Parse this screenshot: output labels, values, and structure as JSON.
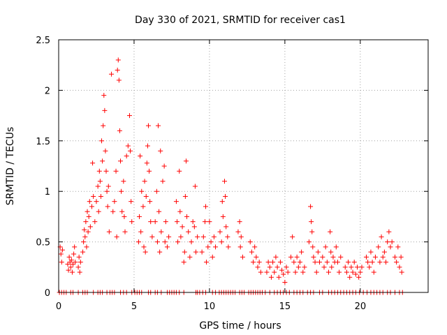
{
  "chart_data": {
    "type": "scatter",
    "title": "Day 330 of 2021, SRMTID for receiver cas1",
    "xlabel": "GPS time / hours",
    "ylabel": "SRMTID / TECUs",
    "xlim": [
      0,
      24.5
    ],
    "ylim": [
      0,
      2.5
    ],
    "xticks": [
      0,
      5,
      10,
      15,
      20
    ],
    "yticks": [
      0,
      0.5,
      1,
      1.5,
      2,
      2.5
    ],
    "xtick_labels": [
      "0",
      "5",
      "10",
      "15",
      "20"
    ],
    "ytick_labels": [
      "0",
      "0.5",
      "1",
      "1.5",
      "2",
      "2.5"
    ],
    "grid": true,
    "marker": "+",
    "color": "#ff0000",
    "series": [
      {
        "name": "SRMTID",
        "points": [
          [
            0.1,
            0.45
          ],
          [
            0.15,
            0.38
          ],
          [
            0.2,
            0.3
          ],
          [
            0.25,
            0.42
          ],
          [
            0.6,
            0.28
          ],
          [
            0.65,
            0.22
          ],
          [
            0.7,
            0.35
          ],
          [
            0.75,
            0.3
          ],
          [
            0.8,
            0.25
          ],
          [
            0.85,
            0.32
          ],
          [
            0.9,
            0.2
          ],
          [
            0.95,
            0.28
          ],
          [
            1.0,
            0.38
          ],
          [
            1.05,
            0.45
          ],
          [
            1.1,
            0.3
          ],
          [
            1.3,
            0.25
          ],
          [
            1.35,
            0.35
          ],
          [
            1.4,
            0.2
          ],
          [
            1.45,
            0.3
          ],
          [
            1.6,
            0.4
          ],
          [
            1.65,
            0.5
          ],
          [
            1.7,
            0.62
          ],
          [
            1.75,
            0.55
          ],
          [
            1.8,
            0.7
          ],
          [
            1.85,
            0.45
          ],
          [
            1.9,
            0.8
          ],
          [
            1.95,
            0.6
          ],
          [
            2.0,
            0.75
          ],
          [
            2.05,
            0.9
          ],
          [
            2.1,
            0.65
          ],
          [
            2.2,
            0.85
          ],
          [
            2.25,
            1.28
          ],
          [
            2.3,
            0.95
          ],
          [
            2.4,
            0.7
          ],
          [
            2.5,
            0.9
          ],
          [
            2.6,
            1.05
          ],
          [
            2.65,
            0.8
          ],
          [
            2.7,
            1.2
          ],
          [
            2.75,
            1.1
          ],
          [
            2.8,
            0.95
          ],
          [
            2.85,
            1.5
          ],
          [
            2.9,
            1.3
          ],
          [
            2.95,
            1.65
          ],
          [
            3.0,
            1.95
          ],
          [
            3.05,
            1.8
          ],
          [
            3.1,
            1.4
          ],
          [
            3.15,
            1.2
          ],
          [
            3.2,
            1.0
          ],
          [
            3.25,
            0.85
          ],
          [
            3.3,
            1.05
          ],
          [
            3.35,
            0.6
          ],
          [
            3.5,
            2.16
          ],
          [
            3.6,
            0.8
          ],
          [
            3.7,
            0.9
          ],
          [
            3.8,
            1.2
          ],
          [
            3.85,
            0.55
          ],
          [
            3.9,
            2.2
          ],
          [
            3.95,
            2.3
          ],
          [
            4.0,
            2.1
          ],
          [
            4.05,
            1.6
          ],
          [
            4.1,
            1.3
          ],
          [
            4.15,
            1.0
          ],
          [
            4.2,
            0.8
          ],
          [
            4.3,
            1.1
          ],
          [
            4.35,
            0.75
          ],
          [
            4.4,
            0.6
          ],
          [
            4.5,
            1.35
          ],
          [
            4.6,
            1.45
          ],
          [
            4.7,
            1.75
          ],
          [
            4.75,
            1.4
          ],
          [
            4.8,
            0.9
          ],
          [
            4.85,
            0.7
          ],
          [
            5.3,
            0.5
          ],
          [
            5.35,
            0.75
          ],
          [
            5.4,
            1.35
          ],
          [
            5.45,
            0.6
          ],
          [
            5.5,
            1.0
          ],
          [
            5.6,
            0.85
          ],
          [
            5.65,
            0.45
          ],
          [
            5.7,
            1.1
          ],
          [
            5.75,
            0.4
          ],
          [
            5.8,
            0.95
          ],
          [
            5.85,
            1.28
          ],
          [
            5.9,
            1.45
          ],
          [
            5.95,
            1.65
          ],
          [
            6.0,
            1.2
          ],
          [
            6.05,
            0.9
          ],
          [
            6.1,
            0.7
          ],
          [
            6.2,
            0.55
          ],
          [
            6.4,
            0.7
          ],
          [
            6.5,
            1.0
          ],
          [
            6.55,
            0.5
          ],
          [
            6.6,
            1.65
          ],
          [
            6.65,
            0.8
          ],
          [
            6.7,
            0.4
          ],
          [
            6.75,
            1.4
          ],
          [
            6.8,
            0.6
          ],
          [
            6.9,
            1.1
          ],
          [
            7.0,
            1.25
          ],
          [
            7.05,
            0.5
          ],
          [
            7.1,
            0.7
          ],
          [
            7.2,
            0.45
          ],
          [
            7.3,
            0.55
          ],
          [
            7.8,
            0.9
          ],
          [
            7.85,
            0.7
          ],
          [
            7.9,
            0.5
          ],
          [
            8.0,
            1.2
          ],
          [
            8.05,
            0.8
          ],
          [
            8.1,
            0.55
          ],
          [
            8.2,
            0.65
          ],
          [
            8.3,
            0.3
          ],
          [
            8.35,
            0.4
          ],
          [
            8.4,
            0.95
          ],
          [
            8.45,
            1.3
          ],
          [
            8.5,
            0.75
          ],
          [
            8.6,
            0.6
          ],
          [
            8.7,
            0.35
          ],
          [
            8.8,
            0.5
          ],
          [
            8.9,
            0.7
          ],
          [
            9.0,
            0.65
          ],
          [
            9.05,
            1.05
          ],
          [
            9.1,
            0.4
          ],
          [
            9.2,
            0.55
          ],
          [
            9.5,
            0.4
          ],
          [
            9.6,
            0.55
          ],
          [
            9.7,
            0.7
          ],
          [
            9.75,
            0.85
          ],
          [
            9.8,
            0.3
          ],
          [
            9.9,
            0.45
          ],
          [
            10.0,
            0.7
          ],
          [
            10.1,
            0.5
          ],
          [
            10.2,
            0.35
          ],
          [
            10.3,
            0.55
          ],
          [
            10.4,
            0.45
          ],
          [
            10.7,
            0.6
          ],
          [
            10.8,
            0.5
          ],
          [
            10.85,
            0.9
          ],
          [
            10.9,
            0.75
          ],
          [
            11.0,
            1.1
          ],
          [
            11.05,
            0.95
          ],
          [
            11.1,
            0.65
          ],
          [
            11.2,
            0.55
          ],
          [
            11.25,
            0.45
          ],
          [
            11.9,
            0.6
          ],
          [
            12.0,
            0.7
          ],
          [
            12.05,
            0.45
          ],
          [
            12.1,
            0.55
          ],
          [
            12.2,
            0.35
          ],
          [
            12.7,
            0.5
          ],
          [
            12.8,
            0.4
          ],
          [
            12.9,
            0.3
          ],
          [
            13.0,
            0.45
          ],
          [
            13.1,
            0.35
          ],
          [
            13.2,
            0.25
          ],
          [
            13.3,
            0.3
          ],
          [
            13.4,
            0.2
          ],
          [
            13.8,
            0.2
          ],
          [
            13.9,
            0.3
          ],
          [
            14.0,
            0.25
          ],
          [
            14.1,
            0.15
          ],
          [
            14.2,
            0.3
          ],
          [
            14.3,
            0.2
          ],
          [
            14.4,
            0.35
          ],
          [
            14.5,
            0.25
          ],
          [
            14.6,
            0.15
          ],
          [
            14.7,
            0.3
          ],
          [
            14.8,
            0.22
          ],
          [
            14.9,
            0.18
          ],
          [
            15.0,
            0.1
          ],
          [
            15.1,
            0.25
          ],
          [
            15.2,
            0.2
          ],
          [
            15.4,
            0.35
          ],
          [
            15.5,
            0.55
          ],
          [
            15.6,
            0.3
          ],
          [
            15.7,
            0.2
          ],
          [
            15.8,
            0.35
          ],
          [
            15.9,
            0.25
          ],
          [
            16.0,
            0.3
          ],
          [
            16.1,
            0.4
          ],
          [
            16.2,
            0.2
          ],
          [
            16.3,
            0.25
          ],
          [
            16.6,
            0.5
          ],
          [
            16.7,
            0.85
          ],
          [
            16.75,
            0.7
          ],
          [
            16.8,
            0.6
          ],
          [
            16.85,
            0.45
          ],
          [
            16.9,
            0.35
          ],
          [
            17.0,
            0.3
          ],
          [
            17.1,
            0.2
          ],
          [
            17.2,
            0.4
          ],
          [
            17.3,
            0.3
          ],
          [
            17.5,
            0.35
          ],
          [
            17.6,
            0.25
          ],
          [
            17.7,
            0.45
          ],
          [
            17.8,
            0.3
          ],
          [
            17.9,
            0.2
          ],
          [
            18.0,
            0.6
          ],
          [
            18.05,
            0.4
          ],
          [
            18.1,
            0.25
          ],
          [
            18.2,
            0.35
          ],
          [
            18.3,
            0.3
          ],
          [
            18.4,
            0.45
          ],
          [
            18.5,
            0.3
          ],
          [
            18.6,
            0.2
          ],
          [
            18.7,
            0.35
          ],
          [
            19.0,
            0.25
          ],
          [
            19.1,
            0.2
          ],
          [
            19.2,
            0.3
          ],
          [
            19.3,
            0.15
          ],
          [
            19.4,
            0.25
          ],
          [
            19.5,
            0.2
          ],
          [
            19.6,
            0.3
          ],
          [
            19.7,
            0.18
          ],
          [
            19.8,
            0.25
          ],
          [
            19.9,
            0.15
          ],
          [
            20.0,
            0.2
          ],
          [
            20.1,
            0.25
          ],
          [
            20.4,
            0.35
          ],
          [
            20.5,
            0.3
          ],
          [
            20.6,
            0.25
          ],
          [
            20.7,
            0.4
          ],
          [
            20.8,
            0.3
          ],
          [
            20.9,
            0.2
          ],
          [
            21.0,
            0.35
          ],
          [
            21.2,
            0.45
          ],
          [
            21.3,
            0.3
          ],
          [
            21.4,
            0.55
          ],
          [
            21.5,
            0.35
          ],
          [
            21.6,
            0.4
          ],
          [
            21.7,
            0.3
          ],
          [
            21.8,
            0.5
          ],
          [
            21.9,
            0.6
          ],
          [
            22.0,
            0.45
          ],
          [
            22.1,
            0.5
          ],
          [
            22.3,
            0.35
          ],
          [
            22.4,
            0.3
          ],
          [
            22.5,
            0.45
          ],
          [
            22.6,
            0.25
          ],
          [
            22.7,
            0.35
          ],
          [
            22.75,
            0.2
          ]
        ],
        "zero_points": [
          0.05,
          0.2,
          0.35,
          0.5,
          0.8,
          0.95,
          1.3,
          1.6,
          1.75,
          1.9,
          2.3,
          2.6,
          2.75,
          2.9,
          3.2,
          3.4,
          3.55,
          3.7,
          4.1,
          4.3,
          4.5,
          4.85,
          5.05,
          5.2,
          5.35,
          5.5,
          5.95,
          6.1,
          6.4,
          6.55,
          6.8,
          7.2,
          7.35,
          7.5,
          7.65,
          7.8,
          8.0,
          8.3,
          9.1,
          9.2,
          9.35,
          9.55,
          9.75,
          10.2,
          10.4,
          10.65,
          10.8,
          10.95,
          11.1,
          11.25,
          11.4,
          11.55,
          11.7,
          12.0,
          12.15,
          12.3,
          12.6,
          12.75,
          12.9,
          13.05,
          13.2,
          13.35,
          13.5,
          13.7,
          14.0,
          14.3,
          14.5,
          14.7,
          14.9,
          15.1,
          15.3,
          15.6,
          15.8,
          16.0,
          16.2,
          16.5,
          16.7,
          16.9,
          17.3,
          17.5,
          17.9,
          18.1,
          18.3,
          18.5,
          18.7,
          18.9,
          19.1,
          19.3,
          19.5,
          19.7,
          19.95,
          20.2,
          20.45,
          20.7,
          20.9,
          21.1,
          21.3,
          21.5,
          21.8,
          22.0,
          22.3,
          22.6,
          22.8
        ]
      }
    ]
  }
}
